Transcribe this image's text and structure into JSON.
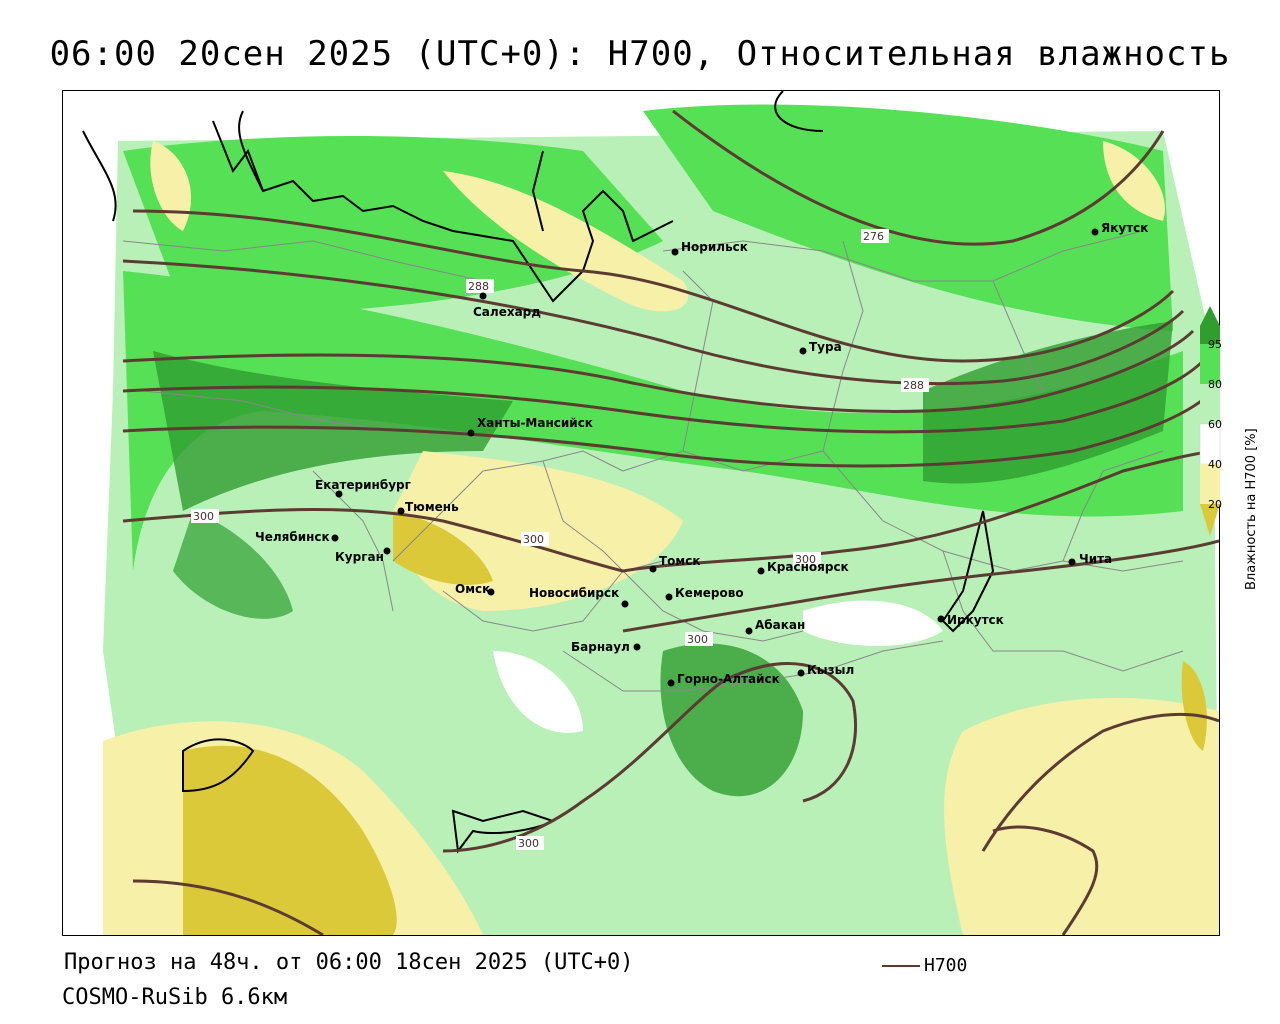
{
  "title": "06:00 20сен 2025 (UTC+0): H700, Относительная влажность",
  "footer": {
    "forecast": "Прогноз на 48ч. от 06:00 18сен 2025 (UTC+0)",
    "model": "COSMO-RuSib 6.6км",
    "legend_label": "H700"
  },
  "colorbar": {
    "title": "Влажность на H700 [%]",
    "ticks": [
      "95",
      "80",
      "60",
      "40",
      "20"
    ],
    "colors": {
      "c95": "#2f9e2f",
      "c80": "#55e055",
      "c60": "#b8f0b8",
      "c40": "#ffffff",
      "c20": "#f7f0a8",
      "c0": "#dcc93a"
    }
  },
  "isoline_color": "#5c3b32",
  "isolines": [
    "276",
    "288",
    "288",
    "300",
    "300",
    "300",
    "300",
    "300"
  ],
  "cities": [
    {
      "name": "Якутск"
    },
    {
      "name": "Норильск"
    },
    {
      "name": "Салехард"
    },
    {
      "name": "Тура"
    },
    {
      "name": "Ханты-Мансийск"
    },
    {
      "name": "Екатеринбург"
    },
    {
      "name": "Тюмень"
    },
    {
      "name": "Челябинск"
    },
    {
      "name": "Курган"
    },
    {
      "name": "Омск"
    },
    {
      "name": "Новосибирск"
    },
    {
      "name": "Томск"
    },
    {
      "name": "Кемерово"
    },
    {
      "name": "Красноярск"
    },
    {
      "name": "Абакан"
    },
    {
      "name": "Барнаул"
    },
    {
      "name": "Горно-Алтайск"
    },
    {
      "name": "Кызыл"
    },
    {
      "name": "Иркутск"
    },
    {
      "name": "Чита"
    }
  ]
}
